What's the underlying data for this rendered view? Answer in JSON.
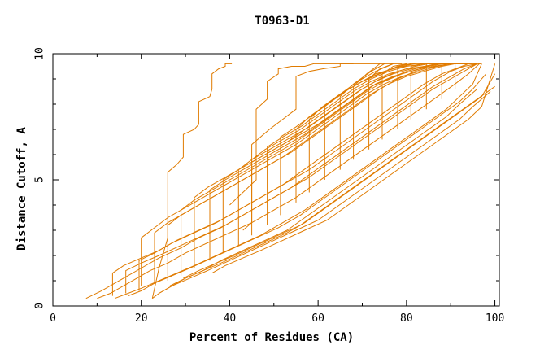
{
  "chart_data": {
    "type": "line",
    "title": "T0963-D1",
    "xlabel": "Percent of Residues (CA)",
    "ylabel": "Distance Cutoff, A",
    "xlim": [
      0,
      101
    ],
    "ylim": [
      0,
      10
    ],
    "xticks": [
      0,
      20,
      40,
      60,
      80,
      100
    ],
    "yticks": [
      0,
      5,
      10
    ],
    "grid": false,
    "legend": "none",
    "line_color": "#e07b00",
    "series": [
      {
        "x": [
          7.5,
          11,
          14,
          17,
          20,
          24,
          29,
          33,
          38,
          43,
          48,
          53,
          58,
          62,
          66,
          70,
          74,
          78,
          82,
          86,
          90,
          93,
          96
        ],
        "y": [
          0.3,
          0.6,
          0.9,
          1.2,
          1.5,
          1.9,
          2.3,
          2.7,
          3.1,
          3.6,
          4.1,
          4.6,
          5.1,
          5.6,
          6.1,
          6.6,
          7.1,
          7.6,
          8.1,
          8.6,
          9.0,
          9.3,
          9.6
        ]
      },
      {
        "x": [
          10,
          13,
          16,
          19,
          22,
          26,
          30,
          35,
          40,
          45,
          50,
          55,
          59,
          63,
          67,
          71,
          75,
          79,
          83,
          87,
          91,
          94,
          96.5
        ],
        "y": [
          0.3,
          0.5,
          0.8,
          1.1,
          1.4,
          1.7,
          2.1,
          2.5,
          2.9,
          3.3,
          3.8,
          4.3,
          4.8,
          5.3,
          5.8,
          6.3,
          6.8,
          7.3,
          7.8,
          8.3,
          8.8,
          9.2,
          9.6
        ]
      },
      {
        "x": [
          13.5,
          13.5,
          16,
          20,
          24,
          28,
          33,
          38,
          43,
          48,
          53,
          58,
          62,
          66,
          70,
          74,
          78,
          82,
          86,
          90,
          93,
          96
        ],
        "y": [
          0.4,
          1.3,
          1.6,
          1.9,
          2.2,
          2.6,
          3.0,
          3.4,
          3.9,
          4.4,
          4.9,
          5.4,
          5.9,
          6.4,
          6.9,
          7.4,
          7.9,
          8.4,
          8.9,
          9.3,
          9.5,
          9.6
        ]
      },
      {
        "x": [
          14,
          17,
          20,
          24,
          28,
          32,
          37,
          42,
          47,
          52,
          57,
          61,
          65,
          69,
          73,
          77,
          81,
          85,
          89,
          92,
          95,
          97
        ],
        "y": [
          0.3,
          0.5,
          0.7,
          1.0,
          1.3,
          1.6,
          2.0,
          2.4,
          2.8,
          3.3,
          3.8,
          4.3,
          4.8,
          5.3,
          5.8,
          6.3,
          6.8,
          7.3,
          7.8,
          8.3,
          8.8,
          9.6
        ]
      },
      {
        "x": [
          16.5,
          16.5,
          20,
          24,
          29,
          34,
          39,
          44,
          49,
          54,
          58,
          62,
          66,
          70,
          74,
          78,
          82,
          86,
          90,
          93,
          96
        ],
        "y": [
          0.5,
          1.4,
          1.7,
          2.0,
          2.4,
          2.8,
          3.2,
          3.7,
          4.2,
          4.7,
          5.2,
          5.7,
          6.2,
          6.7,
          7.2,
          7.7,
          8.2,
          8.7,
          9.1,
          9.4,
          9.6
        ]
      },
      {
        "x": [
          17,
          20,
          23,
          27,
          31,
          36,
          41,
          46,
          51,
          56,
          60,
          64,
          68,
          72,
          76,
          80,
          84,
          88,
          92,
          95,
          98
        ],
        "y": [
          0.4,
          0.6,
          0.9,
          1.2,
          1.5,
          1.9,
          2.3,
          2.7,
          3.1,
          3.6,
          4.1,
          4.6,
          5.1,
          5.6,
          6.1,
          6.6,
          7.1,
          7.6,
          8.1,
          8.6,
          9.2
        ]
      },
      {
        "x": [
          19.5,
          19.5,
          23,
          27,
          32,
          37,
          42,
          47,
          52,
          56,
          60,
          64,
          68,
          72,
          76,
          80,
          84,
          88,
          91,
          94
        ],
        "y": [
          0.6,
          1.8,
          2.1,
          2.5,
          2.9,
          3.3,
          3.8,
          4.3,
          4.8,
          5.3,
          5.8,
          6.3,
          6.8,
          7.3,
          7.8,
          8.3,
          8.8,
          9.2,
          9.4,
          9.6
        ]
      },
      {
        "x": [
          20,
          20,
          23,
          26,
          30,
          35,
          40,
          45,
          50,
          55,
          59,
          63,
          67,
          71,
          75,
          79,
          83,
          87,
          90,
          93
        ],
        "y": [
          0.8,
          2.7,
          3.1,
          3.5,
          3.9,
          4.4,
          4.9,
          5.4,
          5.9,
          6.4,
          6.9,
          7.4,
          7.9,
          8.4,
          8.8,
          9.1,
          9.3,
          9.5,
          9.6,
          9.6
        ]
      },
      {
        "x": [
          22.5,
          24,
          27,
          31,
          35,
          40,
          45,
          50,
          55,
          60,
          64,
          68,
          72,
          76,
          80,
          84,
          88,
          92,
          95,
          99
        ],
        "y": [
          0.3,
          0.5,
          0.8,
          1.1,
          1.4,
          1.8,
          2.2,
          2.6,
          3.0,
          3.4,
          3.9,
          4.4,
          4.9,
          5.4,
          5.9,
          6.4,
          6.9,
          7.4,
          7.9,
          8.5
        ]
      },
      {
        "x": [
          23,
          23,
          26,
          30,
          34,
          39,
          44,
          49,
          54,
          58,
          62,
          66,
          70,
          74,
          78,
          82,
          86,
          90,
          93,
          95
        ],
        "y": [
          0.9,
          2.9,
          3.3,
          3.7,
          4.1,
          4.6,
          5.1,
          5.6,
          6.1,
          6.6,
          7.1,
          7.6,
          8.1,
          8.6,
          9.0,
          9.3,
          9.5,
          9.6,
          9.6,
          9.6
        ]
      },
      {
        "x": [
          24,
          27,
          30,
          34,
          38,
          43,
          48,
          53,
          57,
          61,
          65,
          69,
          73,
          77,
          81,
          85,
          89,
          92,
          96
        ],
        "y": [
          0.5,
          0.8,
          1.1,
          1.4,
          1.8,
          2.2,
          2.6,
          3.0,
          3.5,
          4.0,
          4.5,
          5.0,
          5.5,
          6.0,
          6.5,
          7.0,
          7.5,
          8.0,
          8.6
        ]
      },
      {
        "x": [
          26,
          26,
          29,
          33,
          37,
          42,
          47,
          52,
          56,
          60,
          64,
          68,
          72,
          76,
          80,
          84,
          88,
          91,
          94
        ],
        "y": [
          1.0,
          3.2,
          3.6,
          4.0,
          4.4,
          4.9,
          5.4,
          5.9,
          6.4,
          6.9,
          7.4,
          7.9,
          8.4,
          8.8,
          9.1,
          9.3,
          9.5,
          9.6,
          9.6
        ]
      },
      {
        "x": [
          26.5,
          30,
          34,
          38,
          43,
          48,
          53,
          57,
          61,
          65,
          69,
          73,
          77,
          81,
          85,
          89,
          93,
          97,
          100
        ],
        "y": [
          0.8,
          1.1,
          1.4,
          1.7,
          2.1,
          2.5,
          2.9,
          3.3,
          3.8,
          4.3,
          4.8,
          5.3,
          5.8,
          6.3,
          6.8,
          7.3,
          7.8,
          8.3,
          9.2
        ]
      },
      {
        "x": [
          29,
          29,
          32,
          36,
          40,
          45,
          50,
          55,
          59,
          63,
          67,
          71,
          75,
          79,
          83,
          87,
          90,
          93
        ],
        "y": [
          1.2,
          3.8,
          4.2,
          4.6,
          5.0,
          5.5,
          6.0,
          6.5,
          7.0,
          7.5,
          8.0,
          8.5,
          8.9,
          9.2,
          9.4,
          9.5,
          9.6,
          9.6
        ]
      },
      {
        "x": [
          29.5,
          33,
          37,
          41,
          46,
          51,
          56,
          60,
          64,
          68,
          72,
          76,
          80,
          84,
          88,
          92,
          96,
          100
        ],
        "y": [
          1.1,
          1.4,
          1.7,
          2.0,
          2.4,
          2.8,
          3.2,
          3.7,
          4.2,
          4.7,
          5.2,
          5.7,
          6.2,
          6.7,
          7.2,
          7.7,
          8.2,
          8.7
        ]
      },
      {
        "x": [
          32,
          32,
          35,
          39,
          43,
          48,
          53,
          57,
          61,
          65,
          69,
          73,
          77,
          81,
          85,
          88,
          91,
          93
        ],
        "y": [
          1.5,
          4.3,
          4.7,
          5.1,
          5.5,
          6.0,
          6.5,
          7.0,
          7.5,
          8.0,
          8.5,
          8.9,
          9.2,
          9.4,
          9.5,
          9.6,
          9.6,
          9.6
        ]
      },
      {
        "x": [
          36,
          39,
          43,
          47,
          52,
          57,
          62,
          66,
          70,
          74,
          78,
          82,
          86,
          90,
          94,
          97,
          100
        ],
        "y": [
          1.3,
          1.6,
          1.9,
          2.2,
          2.6,
          3.0,
          3.4,
          3.9,
          4.4,
          4.9,
          5.4,
          5.9,
          6.4,
          6.9,
          7.4,
          7.9,
          9.6
        ]
      },
      {
        "x": [
          35.5,
          35.5,
          39,
          43,
          47,
          52,
          57,
          61,
          65,
          69,
          73,
          77,
          81,
          85,
          88,
          91
        ],
        "y": [
          1.8,
          4.6,
          5.0,
          5.4,
          5.8,
          6.3,
          6.8,
          7.3,
          7.8,
          8.3,
          8.8,
          9.1,
          9.3,
          9.5,
          9.6,
          9.6
        ]
      },
      {
        "x": [
          38.5,
          38.5,
          42,
          46,
          50,
          55,
          60,
          64,
          68,
          72,
          76,
          80,
          84,
          87,
          90
        ],
        "y": [
          2.1,
          5.0,
          5.4,
          5.8,
          6.2,
          6.7,
          7.2,
          7.7,
          8.2,
          8.7,
          9.0,
          9.3,
          9.5,
          9.6,
          9.6
        ]
      },
      {
        "x": [
          42,
          42,
          45,
          49,
          53,
          58,
          62,
          66,
          70,
          74,
          78,
          82,
          85,
          88
        ],
        "y": [
          2.4,
          5.4,
          5.8,
          6.2,
          6.6,
          7.1,
          7.6,
          8.1,
          8.6,
          9.0,
          9.3,
          9.5,
          9.6,
          9.6
        ]
      },
      {
        "x": [
          45,
          45,
          48,
          52,
          56,
          60,
          64,
          68,
          72,
          76,
          80,
          84,
          87
        ],
        "y": [
          2.8,
          5.8,
          6.2,
          6.6,
          7.0,
          7.5,
          8.0,
          8.5,
          8.9,
          9.2,
          9.4,
          9.5,
          9.6
        ]
      },
      {
        "x": [
          48.5,
          48.5,
          52,
          56,
          60,
          64,
          68,
          72,
          76,
          80,
          84
        ],
        "y": [
          3.2,
          6.3,
          6.7,
          7.1,
          7.6,
          8.1,
          8.6,
          9.0,
          9.3,
          9.5,
          9.6
        ]
      },
      {
        "x": [
          51.5,
          51.5,
          55,
          59,
          63,
          67,
          71,
          75,
          79,
          82
        ],
        "y": [
          3.6,
          6.7,
          7.1,
          7.6,
          8.1,
          8.6,
          9.0,
          9.3,
          9.5,
          9.6
        ]
      },
      {
        "x": [
          55,
          55,
          58,
          62,
          66,
          70,
          74,
          78,
          81
        ],
        "y": [
          4.1,
          7.0,
          7.5,
          8.0,
          8.5,
          8.9,
          9.2,
          9.5,
          9.6
        ]
      },
      {
        "x": [
          58,
          58,
          61,
          65,
          69,
          73,
          77,
          80
        ],
        "y": [
          4.5,
          7.4,
          7.9,
          8.4,
          8.8,
          9.2,
          9.4,
          9.6
        ]
      },
      {
        "x": [
          61.5,
          61.5,
          65,
          69,
          73,
          77
        ],
        "y": [
          5.0,
          7.9,
          8.4,
          8.9,
          9.3,
          9.6
        ]
      },
      {
        "x": [
          65,
          65,
          68,
          72,
          75
        ],
        "y": [
          5.4,
          8.3,
          8.8,
          9.3,
          9.6
        ]
      },
      {
        "x": [
          68,
          68,
          71,
          74
        ],
        "y": [
          5.8,
          8.7,
          9.2,
          9.6
        ]
      },
      {
        "x": [
          71.5,
          71.5,
          74,
          77
        ],
        "y": [
          6.2,
          9.0,
          9.4,
          9.6
        ]
      },
      {
        "x": [
          74.5,
          74.5,
          77,
          80
        ],
        "y": [
          6.6,
          9.2,
          9.5,
          9.6
        ]
      },
      {
        "x": [
          78,
          78,
          81,
          84
        ],
        "y": [
          7.0,
          9.4,
          9.6,
          9.6
        ]
      },
      {
        "x": [
          81,
          81,
          84,
          87
        ],
        "y": [
          7.4,
          9.5,
          9.6,
          9.6
        ]
      },
      {
        "x": [
          84.5,
          84.5,
          87,
          90
        ],
        "y": [
          7.8,
          9.6,
          9.6,
          9.6
        ]
      },
      {
        "x": [
          88,
          88,
          91,
          94
        ],
        "y": [
          8.2,
          9.6,
          9.6,
          9.6
        ]
      },
      {
        "x": [
          91,
          91,
          94,
          97
        ],
        "y": [
          8.6,
          9.6,
          9.6,
          9.6
        ]
      },
      {
        "x": [
          22.5,
          24,
          26,
          26,
          28,
          29.5,
          29.5,
          32,
          33,
          33,
          35.5,
          36,
          36,
          37.5,
          39,
          39,
          40.5
        ],
        "y": [
          0.3,
          1.5,
          2.7,
          5.3,
          5.6,
          5.9,
          6.8,
          7.0,
          7.2,
          8.1,
          8.3,
          8.6,
          9.2,
          9.4,
          9.5,
          9.6,
          9.6
        ]
      },
      {
        "x": [
          40,
          43,
          46,
          46,
          48.5,
          48.5,
          51,
          51,
          54,
          57,
          59,
          59,
          61.5,
          64,
          66,
          68
        ],
        "y": [
          4.0,
          4.5,
          5.0,
          7.8,
          8.2,
          8.9,
          9.2,
          9.4,
          9.5,
          9.5,
          9.6,
          9.6,
          9.6,
          9.6,
          9.6,
          9.6
        ]
      },
      {
        "x": [
          43,
          45,
          45,
          47,
          49,
          52,
          55,
          55,
          58,
          61,
          65,
          65,
          68,
          71,
          75,
          79
        ],
        "y": [
          3.0,
          3.3,
          6.4,
          6.7,
          7.0,
          7.4,
          7.8,
          9.1,
          9.3,
          9.4,
          9.5,
          9.6,
          9.6,
          9.6,
          9.6,
          9.6
        ]
      }
    ]
  }
}
